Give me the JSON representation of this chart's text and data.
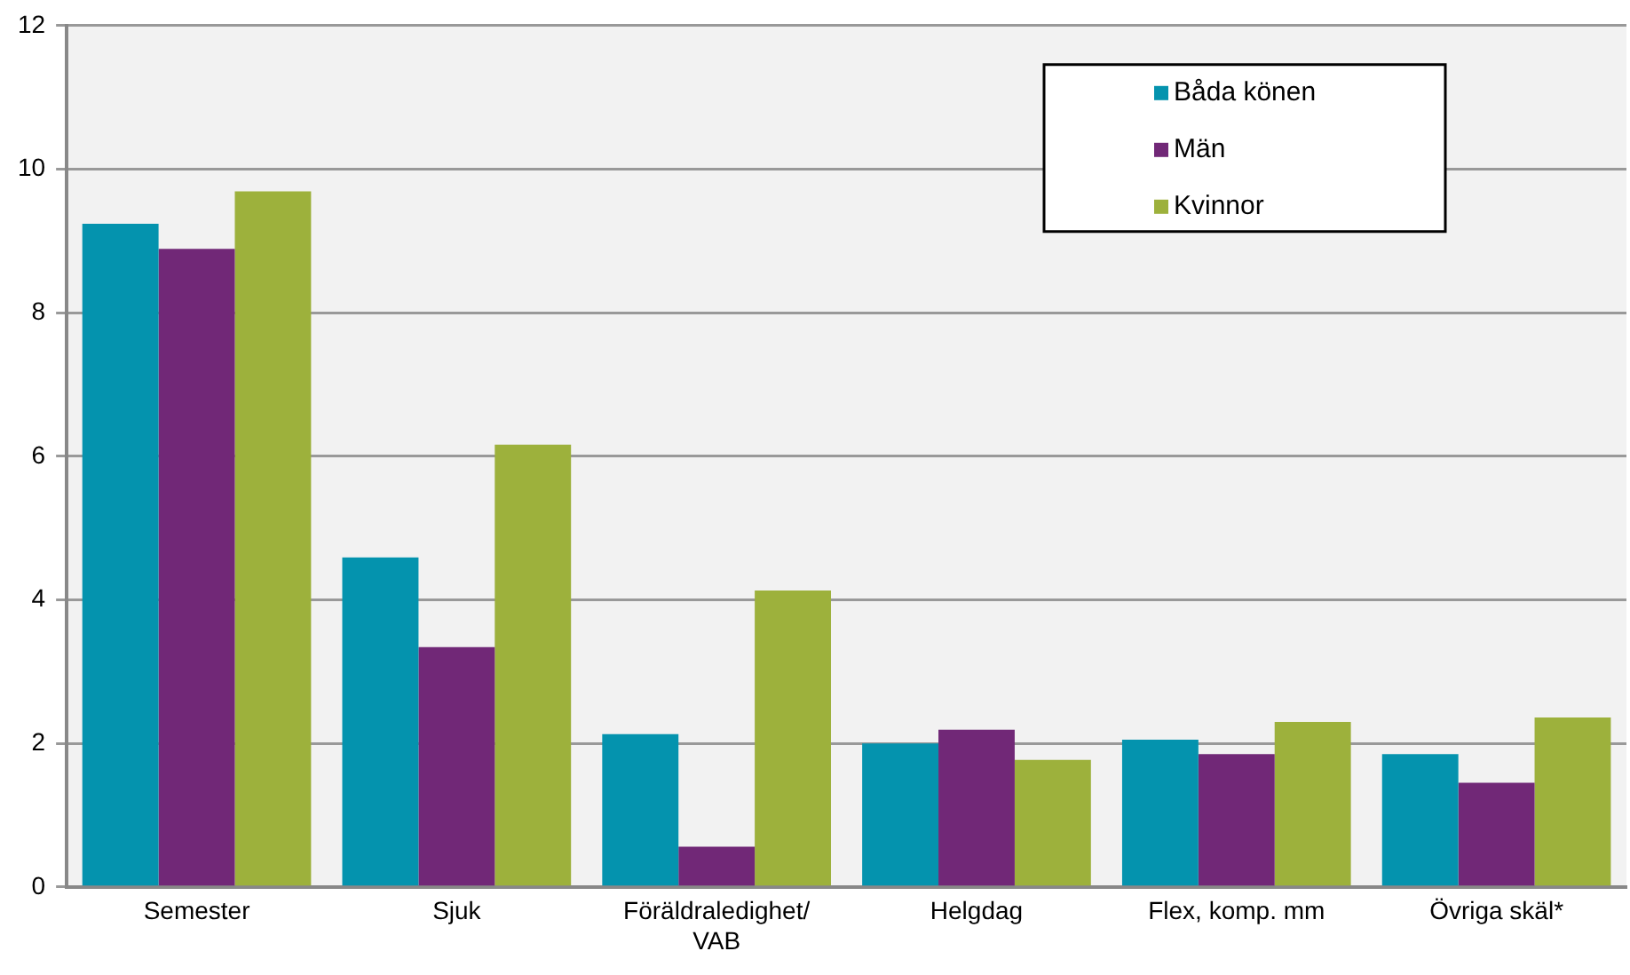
{
  "chart_data": {
    "type": "bar",
    "categories": [
      "Semester",
      "Sjuk",
      "Föräldraledighet/\nVAB",
      "Helgdag",
      "Flex, komp. mm",
      "Övriga skäl*"
    ],
    "series": [
      {
        "name": "Båda könen",
        "color": "#0493ae",
        "values": [
          9.24,
          4.59,
          2.13,
          2.0,
          2.05,
          1.85
        ]
      },
      {
        "name": "Män",
        "color": "#712877",
        "values": [
          8.89,
          3.34,
          0.56,
          2.19,
          1.85,
          1.45
        ]
      },
      {
        "name": "Kvinnor",
        "color": "#9db13c",
        "values": [
          9.69,
          6.16,
          4.13,
          1.77,
          2.3,
          2.36
        ]
      }
    ],
    "ylim": [
      0,
      12
    ],
    "yticks": [
      0,
      2,
      4,
      6,
      8,
      10,
      12
    ],
    "grid": "y",
    "legend": "top right"
  }
}
